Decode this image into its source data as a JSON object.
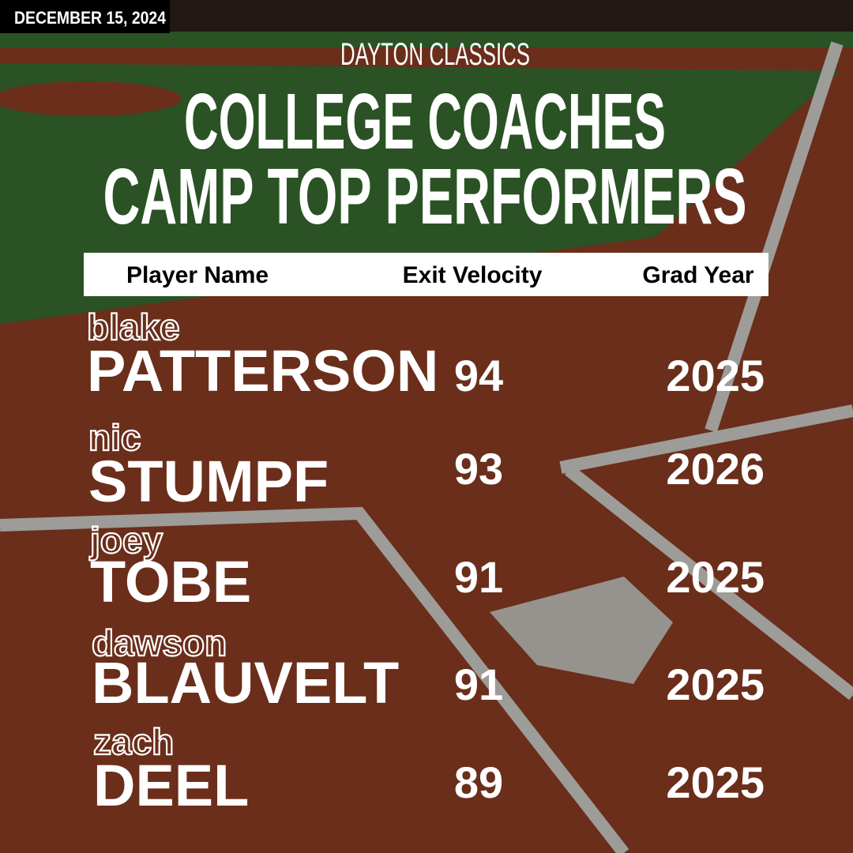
{
  "header": {
    "date": "DECEMBER 15, 2024",
    "organization": "DAYTON CLASSICS",
    "title_lines": [
      "COLLEGE COACHES",
      "CAMP TOP PERFORMERS"
    ]
  },
  "table": {
    "columns": [
      "Player Name",
      "Exit Velocity",
      "Grad Year"
    ],
    "rows": [
      {
        "first": "blake",
        "last": "PATTERSON",
        "exit_velocity": 94,
        "grad_year": 2025
      },
      {
        "first": "nic",
        "last": "STUMPF",
        "exit_velocity": 93,
        "grad_year": 2026
      },
      {
        "first": "joey",
        "last": "TOBE",
        "exit_velocity": 91,
        "grad_year": 2025
      },
      {
        "first": "dawson",
        "last": "BLAUVELT",
        "exit_velocity": 91,
        "grad_year": 2025
      },
      {
        "first": "zach",
        "last": "DEEL",
        "exit_velocity": 89,
        "grad_year": 2025
      }
    ]
  }
}
